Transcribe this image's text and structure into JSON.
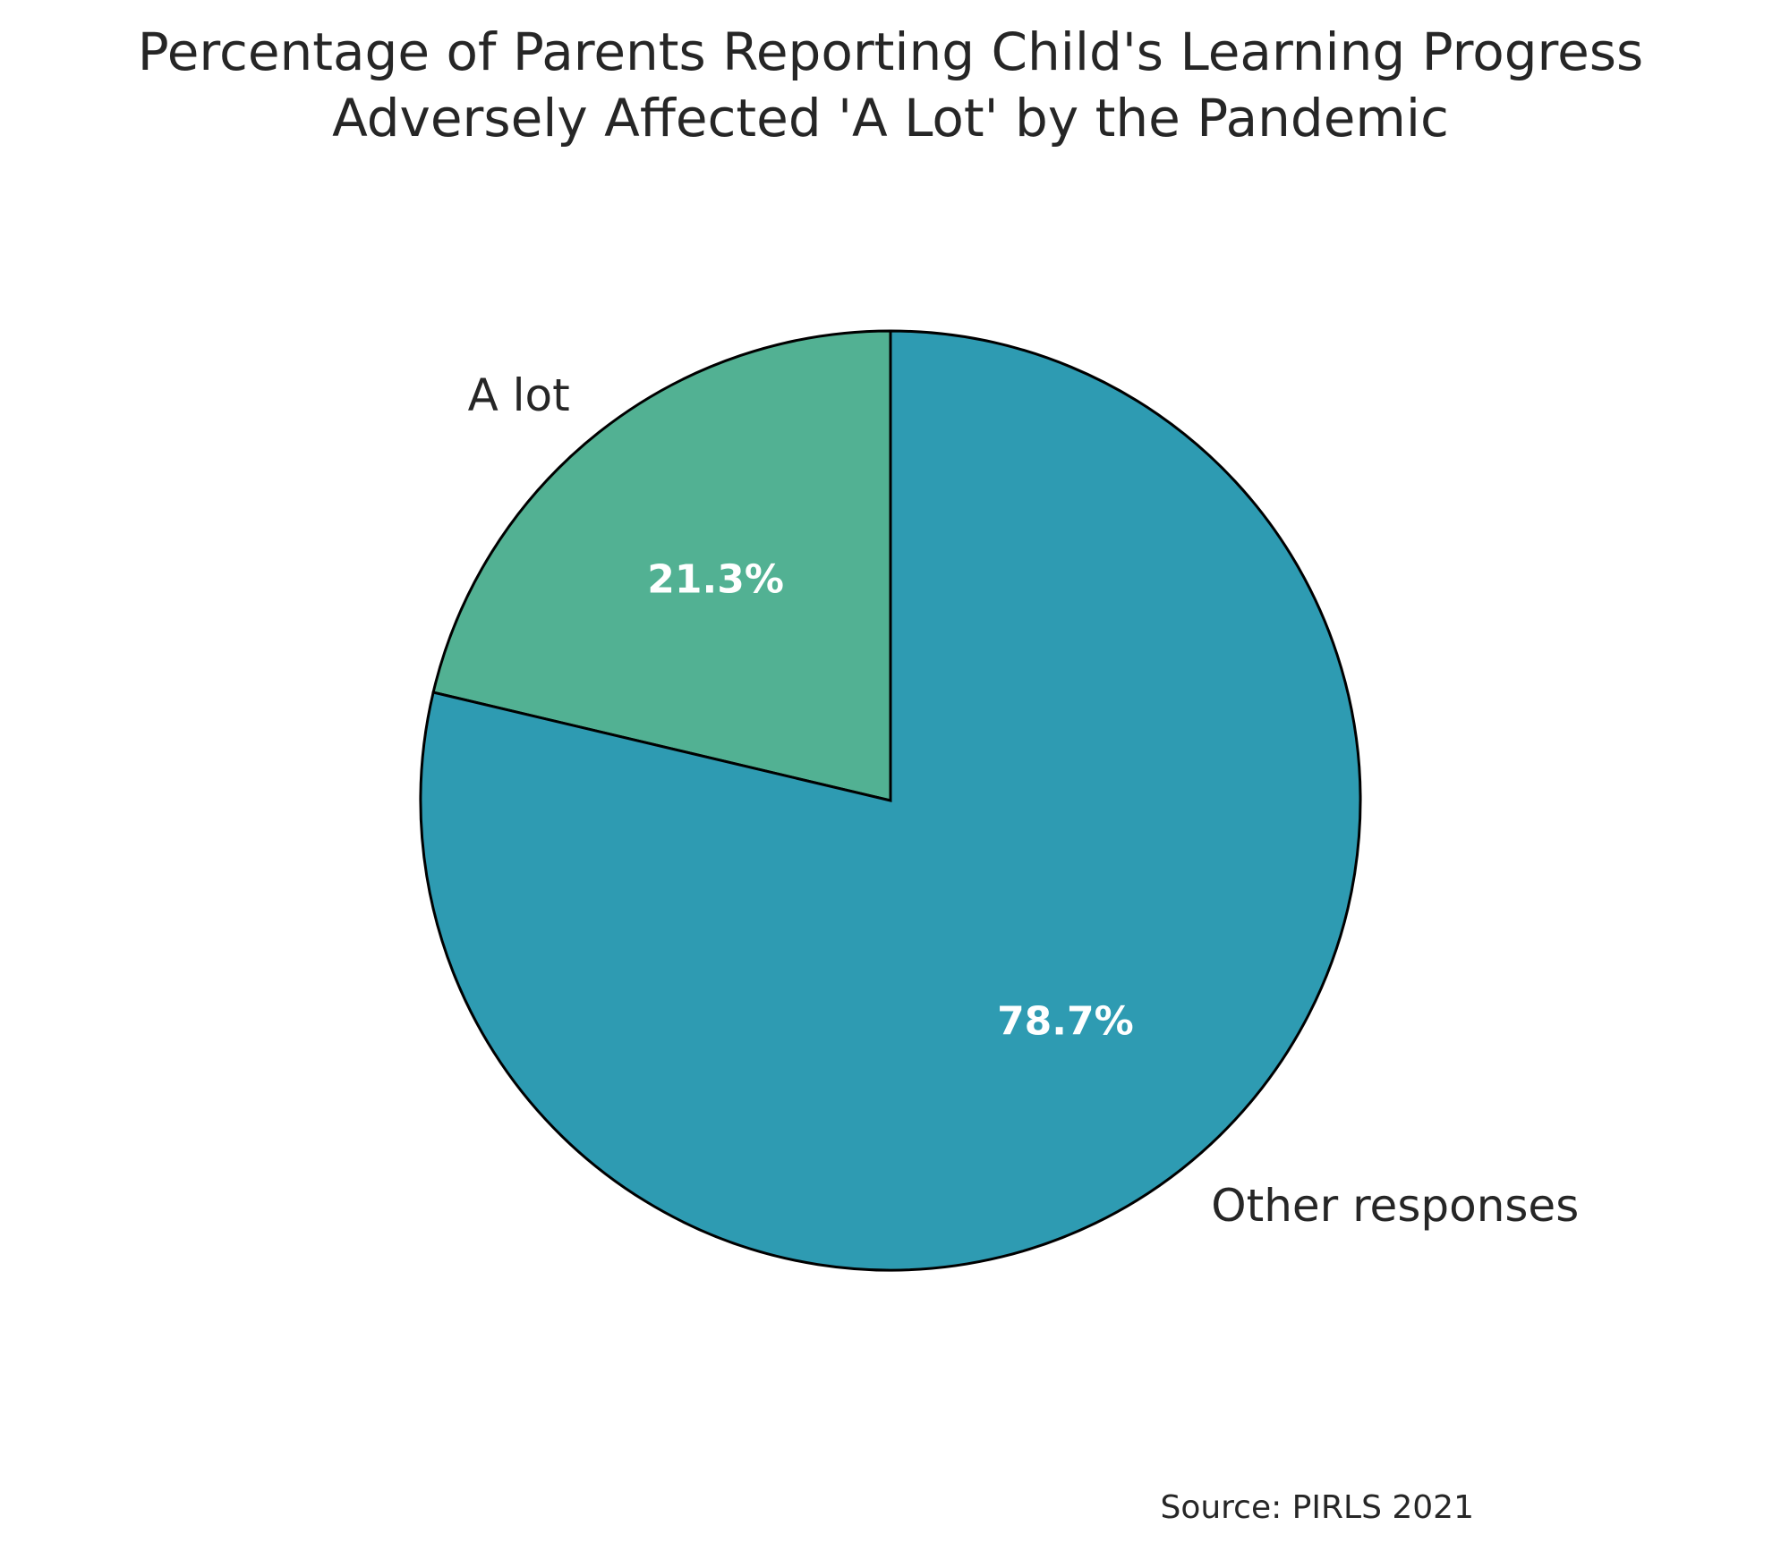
{
  "chart_data": {
    "type": "pie",
    "title_lines": [
      "Percentage of Parents Reporting Child's Learning Progress",
      "Adversely Affected 'A Lot' by the Pandemic"
    ],
    "categories": [
      "A lot",
      "Other responses"
    ],
    "values": [
      21.3,
      78.7
    ],
    "value_labels": [
      "21.3%",
      "78.7%"
    ],
    "colors": [
      "#52b193",
      "#2e9bb2"
    ],
    "edge_color": "#000000",
    "start_angle_deg": 90,
    "direction": "counterclockwise",
    "source": "Source: PIRLS 2021"
  }
}
